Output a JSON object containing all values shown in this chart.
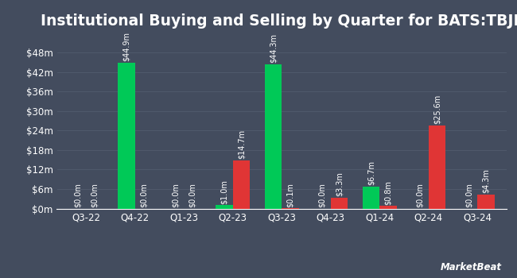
{
  "title": "Institutional Buying and Selling by Quarter for BATS:TBJL",
  "quarters": [
    "Q3-22",
    "Q4-22",
    "Q1-23",
    "Q2-23",
    "Q3-23",
    "Q4-23",
    "Q1-24",
    "Q2-24",
    "Q3-24"
  ],
  "inflows": [
    0.0,
    44.9,
    0.0,
    1.0,
    44.3,
    0.0,
    6.7,
    0.0,
    0.0
  ],
  "outflows": [
    0.0,
    0.0,
    0.0,
    14.7,
    0.1,
    3.3,
    0.8,
    25.6,
    4.3
  ],
  "inflow_labels": [
    "$0.0m",
    "$44.9m",
    "$0.0m",
    "$1.0m",
    "$44.3m",
    "$0.0m",
    "$6.7m",
    "$0.0m",
    "$0.0m"
  ],
  "outflow_labels": [
    "$0.0m",
    "$0.0m",
    "$0.0m",
    "$14.7m",
    "$0.1m",
    "$3.3m",
    "$0.8m",
    "$25.6m",
    "$4.3m"
  ],
  "inflow_color": "#00c957",
  "outflow_color": "#e03535",
  "background_color": "#434c5e",
  "text_color": "#ffffff",
  "grid_color": "#525c6e",
  "ylabel_ticks": [
    0,
    6,
    12,
    18,
    24,
    30,
    36,
    42,
    48
  ],
  "ylabel_labels": [
    "$0m",
    "$6m",
    "$12m",
    "$18m",
    "$24m",
    "$30m",
    "$36m",
    "$42m",
    "$48m"
  ],
  "ylim": [
    0,
    53
  ],
  "bar_width": 0.35,
  "title_fontsize": 13.5,
  "tick_fontsize": 8.5,
  "label_fontsize": 7,
  "legend_fontsize": 8.5,
  "watermark": "⩏ MarketBeat"
}
